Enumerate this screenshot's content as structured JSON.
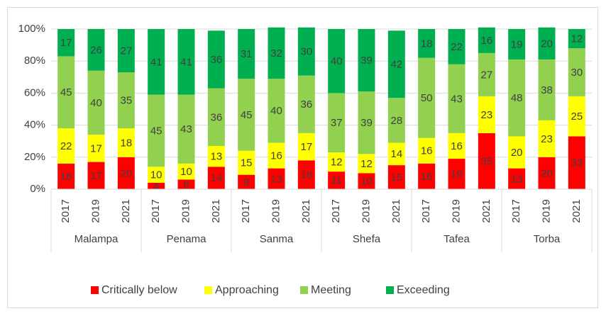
{
  "chart_data": {
    "type": "stacked_bar_percent",
    "categories": [
      "2017",
      "2019",
      "2021",
      "2017",
      "2019",
      "2021",
      "2017",
      "2019",
      "2021",
      "2017",
      "2019",
      "2021",
      "2017",
      "2019",
      "2021",
      "2017",
      "2019",
      "2021"
    ],
    "groups": [
      "Malampa",
      "Penama",
      "Sanma",
      "Shefa",
      "Tafea",
      "Torba"
    ],
    "series": [
      {
        "name": "Critically below",
        "color": "#ff0000",
        "values": [
          16,
          17,
          20,
          4,
          6,
          14,
          9,
          13,
          18,
          11,
          10,
          15,
          16,
          19,
          35,
          13,
          20,
          33
        ]
      },
      {
        "name": "Approaching",
        "color": "#ffff00",
        "values": [
          22,
          17,
          18,
          10,
          10,
          13,
          15,
          16,
          17,
          12,
          12,
          14,
          16,
          16,
          23,
          20,
          23,
          25
        ]
      },
      {
        "name": "Meeting",
        "color": "#92d050",
        "values": [
          45,
          40,
          35,
          45,
          43,
          36,
          45,
          40,
          36,
          37,
          39,
          28,
          50,
          43,
          27,
          48,
          38,
          30
        ]
      },
      {
        "name": "Exceeding",
        "color": "#00b050",
        "values": [
          17,
          26,
          27,
          41,
          41,
          36,
          31,
          32,
          30,
          40,
          39,
          42,
          18,
          22,
          16,
          19,
          20,
          12
        ]
      }
    ],
    "ylim": [
      0,
      100
    ],
    "yticks": [
      {
        "value": 0,
        "label": "0%"
      },
      {
        "value": 20,
        "label": "20%"
      },
      {
        "value": 40,
        "label": "40%"
      },
      {
        "value": 60,
        "label": "60%"
      },
      {
        "value": 80,
        "label": "80%"
      },
      {
        "value": 100,
        "label": "100%"
      }
    ],
    "grid": true,
    "legend": "bottom"
  }
}
